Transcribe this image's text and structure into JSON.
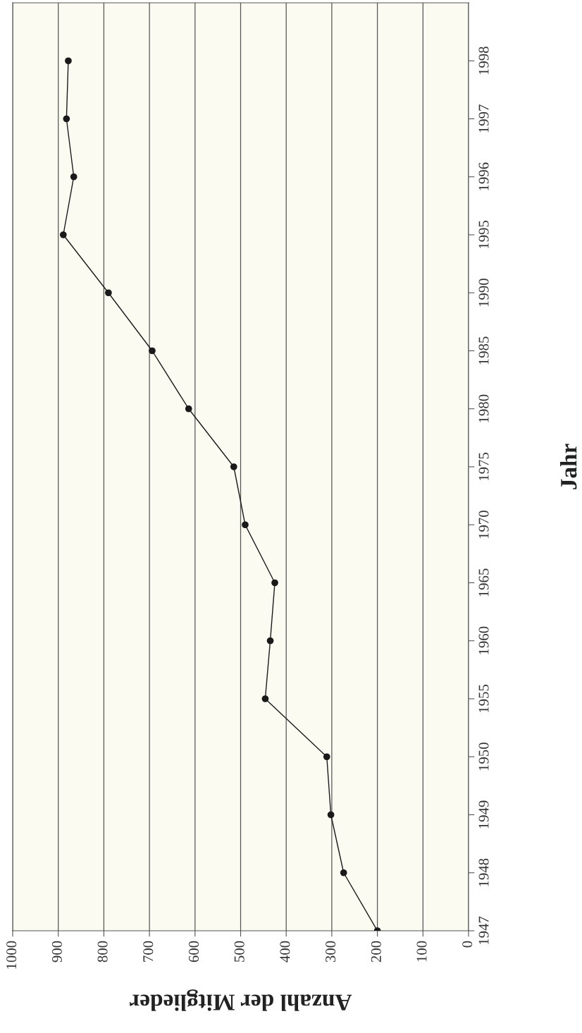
{
  "chart_data": {
    "type": "line",
    "orientation": "horizontal",
    "xlabel": "Anzahl der Mitglieder",
    "ylabel": "Jahr",
    "categories": [
      "1998",
      "1997",
      "1996",
      "1995",
      "1990",
      "1985",
      "1980",
      "1975",
      "1970",
      "1965",
      "1960",
      "1955",
      "1950",
      "1949",
      "1948",
      "1947"
    ],
    "series": [
      {
        "color": "#1a1a1a",
        "values": [
          878,
          882,
          866,
          889,
          790,
          694,
          614,
          515,
          490,
          425,
          435,
          446,
          311,
          302,
          274,
          200
        ]
      }
    ],
    "marker": "circle",
    "line_style": "solid",
    "xlim": [
      1000,
      0
    ],
    "xticks": [
      0,
      100,
      200,
      300,
      400,
      500,
      600,
      700,
      800,
      900,
      1000
    ],
    "grid": "x"
  }
}
